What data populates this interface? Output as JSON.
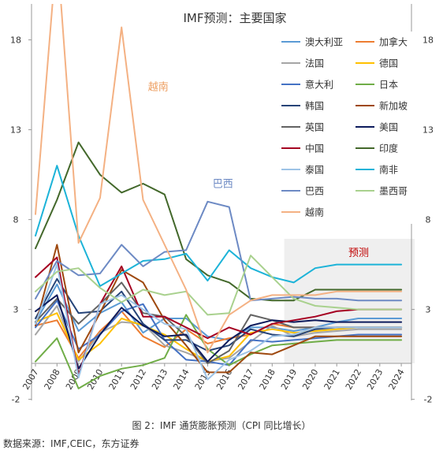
{
  "figure": {
    "caption": "图 2：IMF 通货膨胀预测（CPI 同比增长）",
    "source": "数据来源：IMF,CEIC，东方证券"
  },
  "chart_data": {
    "type": "line",
    "title": "IMF预测：主要国家",
    "x": [
      "2007",
      "2008",
      "2009",
      "2010",
      "2011",
      "2012",
      "2013",
      "2014",
      "2015",
      "2016",
      "2017",
      "2018",
      "2019",
      "2020",
      "2021",
      "2022",
      "2023",
      "2024"
    ],
    "ylim": [
      -2,
      20
    ],
    "yticks": [
      -2,
      3,
      8,
      13,
      18
    ],
    "grid": false,
    "legend_position": "top-right",
    "forecast_region": {
      "from": "2019",
      "to": "2024",
      "label": "预测"
    },
    "annotations": [
      {
        "text": "越南",
        "x": "2013",
        "y": 15.2,
        "color": "#ED9F62"
      },
      {
        "text": "巴西",
        "x": "2016",
        "y": 9.8,
        "color": "#6D8AC4"
      }
    ],
    "series": [
      {
        "name": "澳大利亚",
        "color": "#5B9BD5",
        "values": [
          2.3,
          4.4,
          1.8,
          2.8,
          3.4,
          1.7,
          2.5,
          2.5,
          1.5,
          1.3,
          2.0,
          2.0,
          1.8,
          2.0,
          2.3,
          2.5,
          2.5,
          2.5
        ]
      },
      {
        "name": "加拿大",
        "color": "#ED7D31",
        "values": [
          2.1,
          2.4,
          0.3,
          1.8,
          2.9,
          1.5,
          0.9,
          1.9,
          1.1,
          1.4,
          1.6,
          2.2,
          2.0,
          2.0,
          2.0,
          2.0,
          2.0,
          2.0
        ]
      },
      {
        "name": "法国",
        "color": "#A5A5A5",
        "values": [
          1.6,
          3.2,
          0.1,
          1.7,
          2.3,
          2.2,
          1.0,
          0.6,
          0.1,
          0.3,
          1.2,
          2.1,
          1.5,
          1.7,
          1.8,
          1.9,
          1.9,
          1.9
        ]
      },
      {
        "name": "德国",
        "color": "#FFC000",
        "values": [
          2.3,
          2.8,
          0.2,
          1.1,
          2.5,
          2.1,
          1.6,
          0.8,
          0.1,
          0.4,
          1.7,
          1.9,
          1.7,
          1.8,
          1.9,
          2.0,
          2.0,
          2.0
        ]
      },
      {
        "name": "意大利",
        "color": "#4472C4",
        "values": [
          2.0,
          3.5,
          0.8,
          1.6,
          2.9,
          3.3,
          1.3,
          0.2,
          0.1,
          -0.1,
          1.3,
          1.2,
          1.3,
          1.4,
          1.5,
          1.6,
          1.6,
          1.6
        ]
      },
      {
        "name": "日本",
        "color": "#70AD47",
        "values": [
          0.1,
          1.4,
          -1.4,
          -0.7,
          -0.3,
          -0.1,
          0.3,
          2.7,
          0.8,
          -0.1,
          0.5,
          1.0,
          1.1,
          1.2,
          1.3,
          1.3,
          1.3,
          1.3
        ]
      },
      {
        "name": "韩国",
        "color": "#264478",
        "values": [
          2.5,
          4.7,
          2.8,
          2.9,
          4.0,
          2.2,
          1.3,
          1.3,
          0.7,
          1.0,
          1.9,
          1.6,
          1.5,
          1.9,
          2.0,
          2.0,
          2.0,
          2.0
        ]
      },
      {
        "name": "新加坡",
        "color": "#9E480E",
        "values": [
          2.1,
          6.6,
          0.6,
          2.8,
          5.2,
          4.5,
          2.4,
          1.0,
          -0.5,
          -0.5,
          0.6,
          0.5,
          1.0,
          1.5,
          1.5,
          1.5,
          1.5,
          1.5
        ]
      },
      {
        "name": "英国",
        "color": "#636363",
        "values": [
          2.3,
          3.6,
          2.2,
          3.3,
          4.5,
          2.8,
          2.6,
          1.5,
          0.0,
          0.7,
          2.7,
          2.4,
          2.0,
          2.0,
          2.0,
          2.0,
          2.0,
          2.0
        ]
      },
      {
        "name": "美国",
        "color": "#0D1B5C",
        "values": [
          2.9,
          3.8,
          -0.3,
          1.6,
          3.1,
          2.1,
          1.5,
          1.6,
          0.1,
          1.3,
          2.1,
          2.4,
          2.3,
          2.4,
          2.3,
          2.3,
          2.3,
          2.3
        ]
      },
      {
        "name": "中国",
        "color": "#A50021",
        "values": [
          4.8,
          5.9,
          -0.7,
          3.3,
          5.4,
          2.6,
          2.6,
          2.0,
          1.4,
          2.0,
          1.6,
          2.2,
          2.4,
          2.6,
          2.9,
          3.0,
          3.0,
          3.0
        ]
      },
      {
        "name": "印度",
        "color": "#43682B",
        "values": [
          6.4,
          9.1,
          12.3,
          10.5,
          9.5,
          10.0,
          9.4,
          5.8,
          4.9,
          4.5,
          3.6,
          3.5,
          3.5,
          4.1,
          4.1,
          4.1,
          4.1,
          4.1
        ]
      },
      {
        "name": "泰国",
        "color": "#9DC3E6",
        "values": [
          2.2,
          5.5,
          -0.8,
          3.3,
          3.8,
          3.0,
          2.2,
          1.9,
          -0.9,
          0.2,
          0.7,
          1.5,
          1.6,
          2.0,
          2.0,
          2.0,
          2.0,
          2.0
        ]
      },
      {
        "name": "南非",
        "color": "#1CB3D8",
        "values": [
          7.1,
          11.0,
          7.1,
          4.3,
          5.0,
          5.7,
          5.8,
          6.1,
          4.6,
          6.3,
          5.3,
          4.8,
          4.5,
          5.3,
          5.5,
          5.5,
          5.5,
          5.5
        ]
      },
      {
        "name": "巴西",
        "color": "#6D8AC4",
        "values": [
          3.6,
          5.7,
          4.9,
          5.0,
          6.6,
          5.4,
          6.2,
          6.3,
          9.0,
          8.7,
          3.5,
          3.6,
          3.7,
          3.6,
          3.6,
          3.5,
          3.5,
          3.5
        ]
      },
      {
        "name": "墨西哥",
        "color": "#A9D18E",
        "values": [
          4.0,
          5.1,
          5.3,
          4.2,
          3.4,
          4.1,
          3.8,
          4.0,
          2.7,
          2.8,
          6.0,
          4.8,
          3.6,
          3.2,
          3.1,
          3.0,
          3.0,
          3.0
        ]
      },
      {
        "name": "越南",
        "color": "#F4B183",
        "values": [
          8.3,
          23.1,
          6.7,
          9.2,
          18.7,
          9.1,
          6.6,
          4.1,
          0.6,
          2.7,
          3.5,
          3.8,
          3.8,
          3.8,
          4.0,
          4.0,
          4.0,
          4.0
        ]
      }
    ]
  }
}
